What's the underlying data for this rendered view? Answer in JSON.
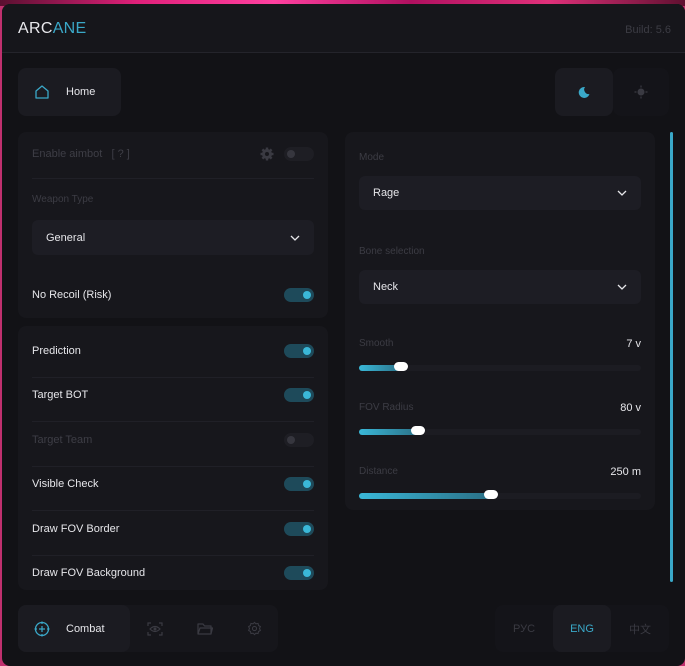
{
  "header": {
    "logo_part1": "ARC",
    "logo_part2": "ANE",
    "build": "Build: 5.6"
  },
  "nav": {
    "home_label": "Home",
    "theme": {
      "active": "dark"
    }
  },
  "left_card1": {
    "enable_aimbot": "Enable aimbot",
    "help": "[ ? ]",
    "enable_aimbot_on": false,
    "weapon_type_label": "Weapon Type",
    "weapon_type_value": "General",
    "no_recoil": "No Recoil (Risk)",
    "no_recoil_on": true
  },
  "left_card2": {
    "items": [
      {
        "label": "Prediction",
        "on": true
      },
      {
        "label": "Target BOT",
        "on": true
      },
      {
        "label": "Target Team",
        "on": false
      },
      {
        "label": "Visible Check",
        "on": true
      },
      {
        "label": "Draw FOV Border",
        "on": true
      },
      {
        "label": "Draw FOV Background",
        "on": true
      }
    ]
  },
  "right_card": {
    "mode_label": "Mode",
    "mode_value": "Rage",
    "bone_label": "Bone selection",
    "bone_value": "Neck",
    "sliders": [
      {
        "label": "Smooth",
        "value": "7 v",
        "fraction": 0.16
      },
      {
        "label": "FOV Radius",
        "value": "80 v",
        "fraction": 0.22
      },
      {
        "label": "Distance",
        "value": "250 m",
        "fraction": 0.48
      }
    ]
  },
  "bottom": {
    "tabs": [
      {
        "label": "Combat",
        "icon": "crosshair-icon",
        "active": true
      },
      {
        "icon": "eye-scan-icon"
      },
      {
        "icon": "folder-icon"
      },
      {
        "icon": "gear-icon"
      }
    ],
    "languages": [
      "РУС",
      "ENG",
      "中文"
    ],
    "active_language": "ENG"
  },
  "colors": {
    "accent": "#3aa8c8",
    "background": "#121216",
    "panel": "#17171c"
  }
}
